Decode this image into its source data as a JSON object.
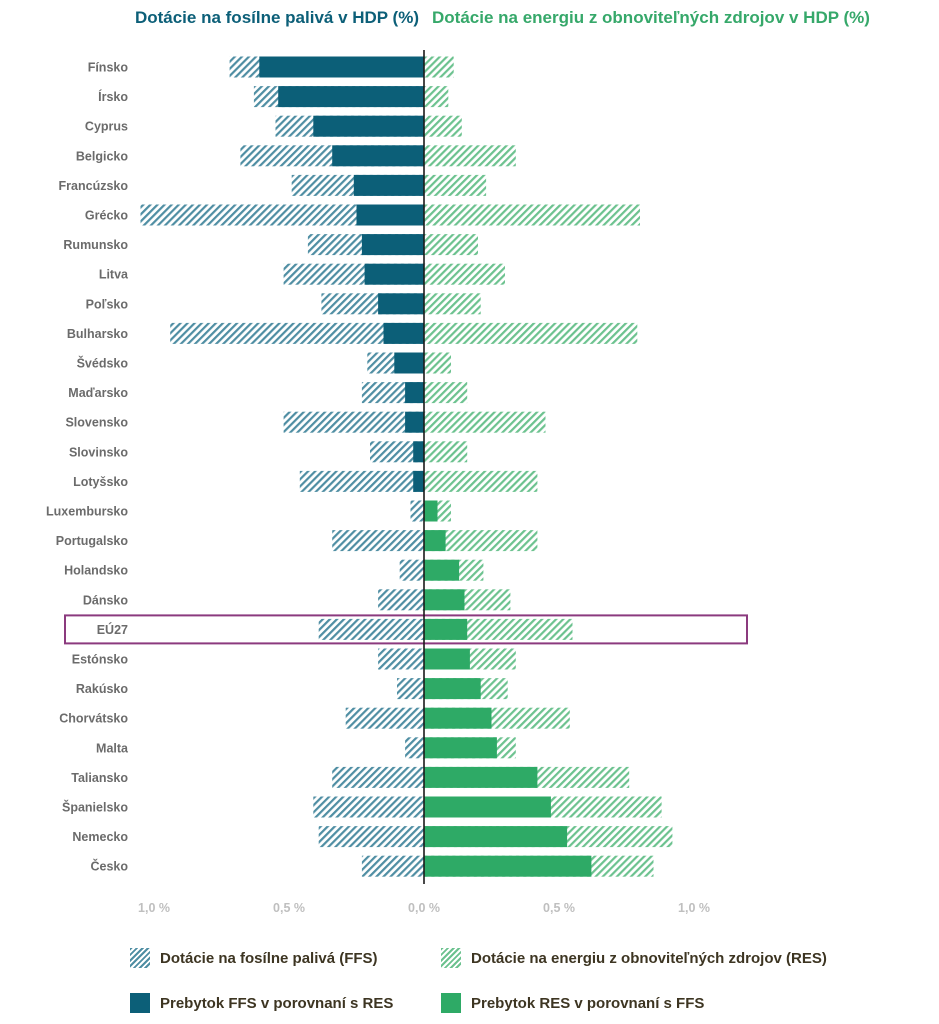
{
  "chart_data": {
    "type": "bar",
    "orientation": "horizontal-diverging",
    "title_left": "Dotácie na fosílne palivá v HDP (%)",
    "title_right": "Dotácie na energiu z obnoviteľných zdrojov v HDP (%)",
    "xlim": [
      -1.1,
      1.1
    ],
    "tick_values": [
      -1.0,
      -0.5,
      0.0,
      0.5,
      1.0
    ],
    "tick_labels": [
      "1,0 %",
      "0,5 %",
      "0,0 %",
      "0,5 %",
      "1,0 %"
    ],
    "highlight": "EÚ27",
    "categories": [
      "Fínsko",
      "Írsko",
      "Cyprus",
      "Belgicko",
      "Francúzsko",
      "Grécko",
      "Rumunsko",
      "Litva",
      "Poľsko",
      "Bulharsko",
      "Švédsko",
      "Maďarsko",
      "Slovensko",
      "Slovinsko",
      "Lotyšsko",
      "Luxembursko",
      "Portugalsko",
      "Holandsko",
      "Dánsko",
      "EÚ27",
      "Estónsko",
      "Rakúsko",
      "Chorvátsko",
      "Malta",
      "Taliansko",
      "Španielsko",
      "Nemecko",
      "Česko"
    ],
    "series": [
      {
        "name": "Dotácie na fosílne palivá (FFS)",
        "values": [
          0.72,
          0.63,
          0.55,
          0.68,
          0.49,
          1.05,
          0.43,
          0.52,
          0.38,
          0.94,
          0.21,
          0.23,
          0.52,
          0.2,
          0.46,
          0.05,
          0.34,
          0.09,
          0.17,
          0.39,
          0.17,
          0.1,
          0.29,
          0.07,
          0.34,
          0.41,
          0.39,
          0.23
        ]
      },
      {
        "name": "Dotácie na energiu z obnoviteľných zdrojov (RES)",
        "values": [
          0.11,
          0.09,
          0.14,
          0.34,
          0.23,
          0.8,
          0.2,
          0.3,
          0.21,
          0.79,
          0.1,
          0.16,
          0.45,
          0.16,
          0.42,
          0.1,
          0.42,
          0.22,
          0.32,
          0.55,
          0.34,
          0.31,
          0.54,
          0.34,
          0.76,
          0.88,
          0.92,
          0.85
        ]
      }
    ]
  },
  "legend": {
    "ffs_subsidy": "Dotácie na fosílne palivá (FFS)",
    "res_subsidy": "Dotácie na energiu z obnoviteľných zdrojov (RES)",
    "ffs_surplus": "Prebytok FFS v porovnaní s RES",
    "res_surplus": "Prebytok RES v porovnaní s FFS"
  },
  "colors": {
    "ffs_dark": "#0c5f78",
    "ffs_hatch": "#4f8ea3",
    "res_dark": "#2eaa66",
    "res_hatch": "#6cc28f",
    "highlight": "#8b3a7e",
    "category_text": "#6b6b6b",
    "tick_text": "#bfbfbf"
  }
}
